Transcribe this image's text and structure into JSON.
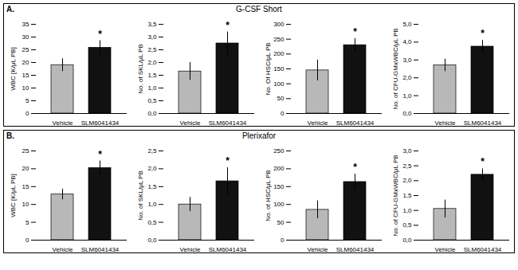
{
  "chart_data": [
    {
      "label": "A.",
      "title": "G-CSF Short",
      "charts": [
        {
          "type": "bar",
          "categories": [
            "Vehicle",
            "SLM6041434"
          ],
          "colors": [
            "#b8b8b8",
            "#111111"
          ],
          "ylabel": "WBC [K/μL PB]",
          "values": [
            19.0,
            25.8
          ],
          "errors": [
            2.5,
            2.8
          ],
          "ylim": [
            0,
            35
          ],
          "yticks": [
            0,
            5,
            10,
            15,
            20,
            25,
            30,
            35
          ],
          "annotations": [
            {
              "text": "*",
              "x": "SLM6041434"
            }
          ]
        },
        {
          "type": "bar",
          "categories": [
            "Vehicle",
            "SLM6041434"
          ],
          "colors": [
            "#b8b8b8",
            "#111111"
          ],
          "ylabel": "No. of SKL/μL PB",
          "values": [
            1.65,
            2.75
          ],
          "errors": [
            0.35,
            0.45
          ],
          "ylim": [
            0,
            3.5
          ],
          "yticks": [
            {
              "value": 0.0,
              "label": "0,0"
            },
            {
              "value": 0.5,
              "label": "0,5"
            },
            {
              "value": 1.0,
              "label": "1,0"
            },
            {
              "value": 1.5,
              "label": "1,5"
            },
            {
              "value": 2.0,
              "label": "2,0"
            },
            {
              "value": 2.5,
              "label": "2,5"
            },
            {
              "value": 3.0,
              "label": "3,0"
            },
            {
              "value": 3.5,
              "label": "3,5"
            }
          ],
          "annotations": [
            {
              "text": "*",
              "x": "SLM6041434"
            }
          ]
        },
        {
          "type": "bar",
          "categories": [
            "Vehicle",
            "SLM6041434"
          ],
          "colors": [
            "#b8b8b8",
            "#111111"
          ],
          "ylabel": "No. Of HSC/μL PB",
          "values": [
            145,
            230
          ],
          "errors": [
            35,
            22
          ],
          "ylim": [
            0,
            300
          ],
          "yticks": [
            0,
            50,
            100,
            150,
            200,
            250,
            300
          ],
          "annotations": [
            {
              "text": "*",
              "x": "SLM6041434"
            }
          ]
        },
        {
          "type": "bar",
          "categories": [
            "Vehicle",
            "SLM6041434"
          ],
          "colors": [
            "#b8b8b8",
            "#111111"
          ],
          "ylabel": "No. of CFU-GMxWBC/μL PB",
          "values": [
            2.7,
            3.75
          ],
          "errors": [
            0.35,
            0.35
          ],
          "ylim": [
            0,
            5.0
          ],
          "yticks": [
            {
              "value": 0.0,
              "label": "0,0"
            },
            {
              "value": 1.0,
              "label": "1,0"
            },
            {
              "value": 2.0,
              "label": "2,0"
            },
            {
              "value": 3.0,
              "label": "3,0"
            },
            {
              "value": 4.0,
              "label": "4,0"
            },
            {
              "value": 5.0,
              "label": "5,0"
            }
          ],
          "annotations": [
            {
              "text": "*",
              "x": "SLM6041434"
            }
          ]
        }
      ]
    },
    {
      "label": "B.",
      "title": "Plerixafor",
      "charts": [
        {
          "type": "bar",
          "categories": [
            "Vehicle",
            "SLM6041434"
          ],
          "colors": [
            "#b8b8b8",
            "#111111"
          ],
          "ylabel": "WBC [K/μL PB]",
          "values": [
            12.8,
            20.2
          ],
          "errors": [
            1.5,
            2.0
          ],
          "ylim": [
            0,
            25
          ],
          "yticks": [
            0,
            5,
            10,
            15,
            20,
            25
          ],
          "annotations": [
            {
              "text": "*",
              "x": "SLM6041434"
            }
          ]
        },
        {
          "type": "bar",
          "categories": [
            "Vehicle",
            "SLM6041434"
          ],
          "colors": [
            "#b8b8b8",
            "#111111"
          ],
          "ylabel": "No. of SKL/μL PB",
          "values": [
            1.0,
            1.65
          ],
          "errors": [
            0.2,
            0.38
          ],
          "ylim": [
            0,
            2.5
          ],
          "yticks": [
            {
              "value": 0.0,
              "label": "0,0"
            },
            {
              "value": 0.5,
              "label": "0,5"
            },
            {
              "value": 1.0,
              "label": "1,0"
            },
            {
              "value": 1.5,
              "label": "1,5"
            },
            {
              "value": 2.0,
              "label": "2,0"
            },
            {
              "value": 2.5,
              "label": "2,5"
            }
          ],
          "annotations": [
            {
              "text": "*",
              "x": "SLM6041434"
            }
          ]
        },
        {
          "type": "bar",
          "categories": [
            "Vehicle",
            "SLM6041434"
          ],
          "colors": [
            "#b8b8b8",
            "#111111"
          ],
          "ylabel": "No. of HSC/μL PB",
          "values": [
            85,
            163
          ],
          "errors": [
            25,
            22
          ],
          "ylim": [
            0,
            250
          ],
          "yticks": [
            0,
            50,
            100,
            150,
            200,
            250
          ],
          "annotations": [
            {
              "text": "*",
              "x": "SLM6041434"
            }
          ]
        },
        {
          "type": "bar",
          "categories": [
            "Vehicle",
            "SLM6041434"
          ],
          "colors": [
            "#b8b8b8",
            "#111111"
          ],
          "ylabel": "No. of CFU-GMxWBC/μL PB",
          "values": [
            1.05,
            2.2
          ],
          "errors": [
            0.3,
            0.2
          ],
          "ylim": [
            0,
            3.0
          ],
          "yticks": [
            {
              "value": 0.0,
              "label": "0,0"
            },
            {
              "value": 0.5,
              "label": "0,5"
            },
            {
              "value": 1.0,
              "label": "1,0"
            },
            {
              "value": 1.5,
              "label": "1,5"
            },
            {
              "value": 2.0,
              "label": "2,0"
            },
            {
              "value": 2.5,
              "label": "2,5"
            },
            {
              "value": 3.0,
              "label": "3,0"
            }
          ],
          "annotations": [
            {
              "text": "*",
              "x": "SLM6041434"
            }
          ]
        }
      ]
    }
  ]
}
